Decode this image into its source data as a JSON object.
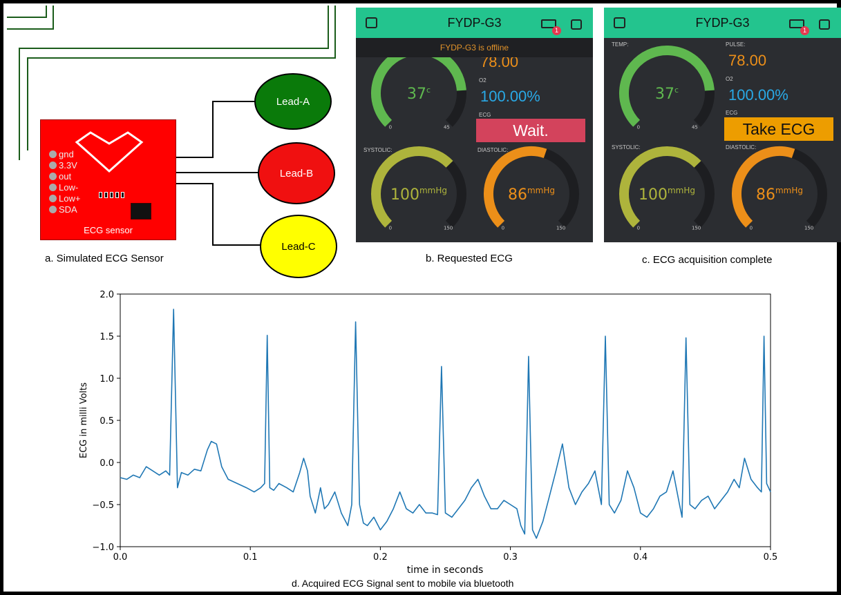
{
  "sensor": {
    "pins": [
      "gnd",
      "3.3V",
      "out",
      "Low-",
      "Low+",
      "SDA"
    ],
    "board_label": "ECG sensor",
    "leads": [
      "Lead-A",
      "Lead-B",
      "Lead-C"
    ],
    "caption": "a. Simulated ECG Sensor"
  },
  "phone_b": {
    "title": "FYDP-G3",
    "badge": "1",
    "offline_notice": "FYDP-G3 is offline",
    "pulse_value": "78.00",
    "o2_label": "O2",
    "o2_value": "100.00%",
    "ecg_label": "ECG",
    "ecg_button": "Wait.",
    "temp_value": "37",
    "temp_unit": "c",
    "temp_min": "0",
    "temp_max": "45",
    "systolic_label": "SYSTOLIC:",
    "systolic_value": "100",
    "systolic_unit": "mmHg",
    "systolic_min": "0",
    "systolic_max": "150",
    "diastolic_label": "DIASTOLIC:",
    "diastolic_value": "86",
    "diastolic_unit": "mmHg",
    "diastolic_min": "0",
    "diastolic_max": "150",
    "caption": "b. Requested ECG",
    "colors": {
      "header": "#23c48e",
      "button": "#d3435c"
    }
  },
  "phone_c": {
    "title": "FYDP-G3",
    "badge": "1",
    "temp_label": "TEMP:",
    "pulse_label": "PULSE:",
    "pulse_value": "78.00",
    "o2_label": "O2",
    "o2_value": "100.00%",
    "ecg_label": "ECG",
    "ecg_button": "Take ECG",
    "temp_value": "37",
    "temp_unit": "c",
    "temp_min": "0",
    "temp_max": "45",
    "systolic_label": "SYSTOLIC:",
    "systolic_value": "100",
    "systolic_unit": "mmHg",
    "systolic_min": "0",
    "systolic_max": "150",
    "diastolic_label": "DIASTOLIC:",
    "diastolic_value": "86",
    "diastolic_unit": "mmHg",
    "diastolic_min": "0",
    "diastolic_max": "150",
    "caption": "c. ECG acquisition complete",
    "colors": {
      "header": "#23c48e",
      "button": "#ed9d00"
    }
  },
  "gauges": {
    "temp_fraction": 0.82,
    "systolic_fraction": 0.67,
    "diastolic_fraction": 0.57,
    "colors": {
      "temp": "#5fb84f",
      "systolic": "#aeb43c",
      "diastolic": "#ec8f19",
      "track": "#1d1e21",
      "pulse": "#ec8f19",
      "o2": "#29a9e6"
    }
  },
  "chart_data": {
    "type": "line",
    "title": "",
    "xlabel": "time in seconds",
    "ylabel": "ECG in milli Volts",
    "xlim": [
      0.0,
      0.5
    ],
    "ylim": [
      -1.0,
      2.0
    ],
    "x_ticks": [
      "0.0",
      "0.1",
      "0.2",
      "0.3",
      "0.4",
      "0.5"
    ],
    "y_ticks": [
      "−1.0",
      "−0.5",
      "0.0",
      "0.5",
      "1.0",
      "1.5",
      "2.0"
    ],
    "grid": false,
    "line_color": "#1f77b4",
    "series": [
      {
        "x": [
          0.0,
          0.005,
          0.01,
          0.015,
          0.02,
          0.025,
          0.03,
          0.035,
          0.038,
          0.041,
          0.044,
          0.047,
          0.052,
          0.057,
          0.062,
          0.067,
          0.07,
          0.074,
          0.078,
          0.083,
          0.09,
          0.097,
          0.103,
          0.108,
          0.111,
          0.113,
          0.115,
          0.118,
          0.122,
          0.128,
          0.133,
          0.138,
          0.141,
          0.144,
          0.146,
          0.15,
          0.154,
          0.157,
          0.16,
          0.165,
          0.17,
          0.175,
          0.178,
          0.181,
          0.184,
          0.187,
          0.19,
          0.195,
          0.2,
          0.205,
          0.21,
          0.215,
          0.22,
          0.225,
          0.23,
          0.235,
          0.24,
          0.244,
          0.247,
          0.25,
          0.255,
          0.26,
          0.265,
          0.27,
          0.275,
          0.28,
          0.285,
          0.29,
          0.295,
          0.3,
          0.305,
          0.308,
          0.311,
          0.314,
          0.317,
          0.32,
          0.325,
          0.33,
          0.335,
          0.34,
          0.345,
          0.35,
          0.355,
          0.36,
          0.365,
          0.37,
          0.373,
          0.376,
          0.38,
          0.385,
          0.39,
          0.395,
          0.4,
          0.405,
          0.41,
          0.415,
          0.42,
          0.425,
          0.43,
          0.432,
          0.435,
          0.438,
          0.442,
          0.447,
          0.452,
          0.457,
          0.462,
          0.467,
          0.472,
          0.476,
          0.48,
          0.485,
          0.49,
          0.493,
          0.495,
          0.497,
          0.5
        ],
        "y": [
          -0.18,
          -0.2,
          -0.15,
          -0.18,
          -0.05,
          -0.1,
          -0.15,
          -0.1,
          -0.15,
          1.82,
          -0.3,
          -0.12,
          -0.15,
          -0.08,
          -0.1,
          0.15,
          0.25,
          0.22,
          -0.05,
          -0.2,
          -0.25,
          -0.3,
          -0.35,
          -0.3,
          -0.25,
          1.51,
          -0.3,
          -0.33,
          -0.25,
          -0.3,
          -0.35,
          -0.12,
          0.05,
          -0.1,
          -0.4,
          -0.6,
          -0.3,
          -0.55,
          -0.5,
          -0.35,
          -0.6,
          -0.75,
          -0.5,
          1.67,
          -0.5,
          -0.72,
          -0.75,
          -0.65,
          -0.8,
          -0.7,
          -0.55,
          -0.35,
          -0.55,
          -0.6,
          -0.5,
          -0.6,
          -0.6,
          -0.62,
          1.14,
          -0.6,
          -0.65,
          -0.55,
          -0.45,
          -0.3,
          -0.2,
          -0.4,
          -0.55,
          -0.55,
          -0.45,
          -0.5,
          -0.55,
          -0.75,
          -0.85,
          1.26,
          -0.8,
          -0.9,
          -0.7,
          -0.4,
          -0.1,
          0.22,
          -0.3,
          -0.5,
          -0.35,
          -0.25,
          -0.1,
          -0.5,
          1.5,
          -0.5,
          -0.6,
          -0.45,
          -0.1,
          -0.3,
          -0.6,
          -0.65,
          -0.55,
          -0.4,
          -0.35,
          -0.1,
          -0.5,
          -0.65,
          1.48,
          -0.5,
          -0.55,
          -0.45,
          -0.4,
          -0.55,
          -0.45,
          -0.35,
          -0.2,
          -0.3,
          0.05,
          -0.2,
          -0.3,
          -0.35,
          1.5,
          -0.25,
          -0.35
        ]
      }
    ]
  },
  "chart_caption": "d. Acquired ECG Signal sent to mobile via bluetooth"
}
